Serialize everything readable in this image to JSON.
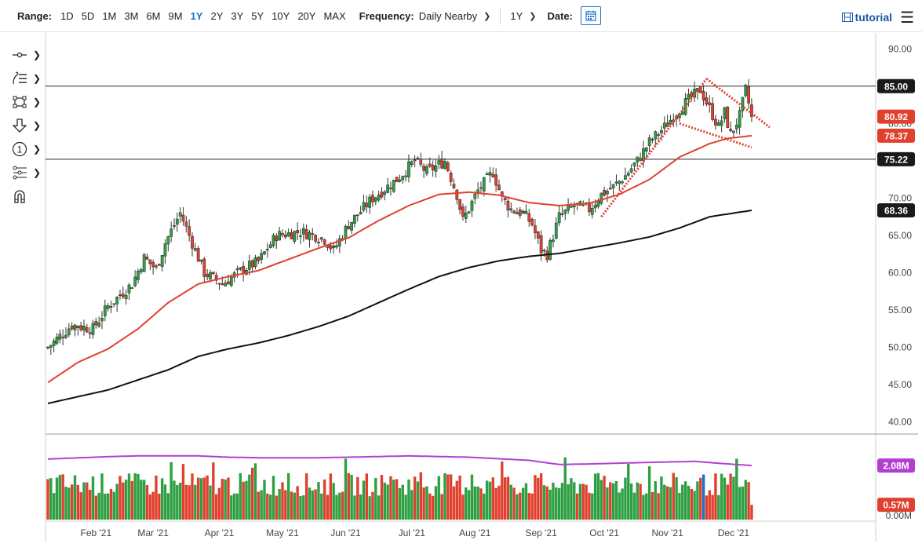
{
  "toolbar": {
    "range_label": "Range:",
    "ranges": [
      "1D",
      "5D",
      "1M",
      "3M",
      "6M",
      "9M",
      "1Y",
      "2Y",
      "3Y",
      "5Y",
      "10Y",
      "20Y",
      "MAX"
    ],
    "active_range": "1Y",
    "frequency_label": "Frequency:",
    "frequency_value": "Daily Nearby",
    "period_value": "1Y",
    "date_label": "Date:",
    "tutorial_label": "tutorial"
  },
  "colors": {
    "up": "#2ea043",
    "down": "#e0412f",
    "ma_short": "#e0412f",
    "ma_long": "#111111",
    "volume_ma": "#b040d0",
    "accent": "#1a73c8"
  },
  "chart_data": [
    {
      "type": "candlestick",
      "x_labels": [
        "Feb '21",
        "Mar '21",
        "Apr '21",
        "May '21",
        "Jun '21",
        "Jul '21",
        "Aug '21",
        "Sep '21",
        "Oct '21",
        "Nov '21",
        "Dec '21"
      ],
      "y_ticks": [
        "90.00",
        "85.00",
        "80.00",
        "75.00",
        "70.00",
        "65.00",
        "60.00",
        "55.00",
        "50.00",
        "45.00",
        "40.00"
      ],
      "ylim": [
        38.5,
        91.5
      ],
      "horizontal_lines": [
        85.0,
        75.22
      ],
      "price_tags": [
        {
          "label": "85.00",
          "value": 85.0,
          "style": "dark"
        },
        {
          "label": "80.92",
          "value": 80.92,
          "style": "red"
        },
        {
          "label": "78.37",
          "value": 78.37,
          "style": "red"
        },
        {
          "label": "75.22",
          "value": 75.22,
          "style": "dark"
        },
        {
          "label": "68.36",
          "value": 68.36,
          "style": "dark"
        }
      ],
      "close_anchors": [
        [
          0,
          50.0
        ],
        [
          8,
          53.0
        ],
        [
          15,
          52.5
        ],
        [
          20,
          55.5
        ],
        [
          28,
          58.5
        ],
        [
          32,
          62.0
        ],
        [
          36,
          60.5
        ],
        [
          39,
          64.0
        ],
        [
          44,
          68.0
        ],
        [
          50,
          62.0
        ],
        [
          52,
          60.0
        ],
        [
          58,
          58.5
        ],
        [
          65,
          60.5
        ],
        [
          70,
          61.5
        ],
        [
          76,
          65.0
        ],
        [
          84,
          65.5
        ],
        [
          89,
          65.0
        ],
        [
          92,
          64.5
        ],
        [
          95,
          63.0
        ],
        [
          100,
          66.5
        ],
        [
          108,
          70.0
        ],
        [
          116,
          72.5
        ],
        [
          122,
          75.0
        ],
        [
          126,
          73.5
        ],
        [
          128,
          74.0
        ],
        [
          132,
          75.0
        ],
        [
          136,
          70.5
        ],
        [
          138,
          67.0
        ],
        [
          143,
          71.0
        ],
        [
          148,
          73.5
        ],
        [
          151,
          70.0
        ],
        [
          154,
          68.5
        ],
        [
          158,
          68.0
        ],
        [
          161,
          66.5
        ],
        [
          164,
          63.0
        ],
        [
          166,
          62.5
        ],
        [
          170,
          67.5
        ],
        [
          175,
          69.0
        ],
        [
          180,
          68.5
        ],
        [
          184,
          70.5
        ],
        [
          188,
          71.5
        ],
        [
          192,
          73.0
        ],
        [
          196,
          75.0
        ],
        [
          200,
          77.5
        ],
        [
          205,
          79.5
        ],
        [
          210,
          82.0
        ],
        [
          214,
          83.5
        ],
        [
          217,
          84.5
        ],
        [
          220,
          82.0
        ],
        [
          223,
          79.5
        ],
        [
          225,
          81.5
        ],
        [
          227,
          78.5
        ],
        [
          230,
          81.0
        ],
        [
          232,
          84.5
        ],
        [
          234,
          80.92
        ]
      ],
      "series": [
        {
          "name": "",
          "type": "line",
          "points": [
            [
              0,
              45.3
            ],
            [
              10,
              48.0
            ],
            [
              20,
              49.8
            ],
            [
              30,
              52.5
            ],
            [
              40,
              56.0
            ],
            [
              50,
              58.5
            ],
            [
              60,
              59.5
            ],
            [
              70,
              60.3
            ],
            [
              80,
              61.8
            ],
            [
              90,
              63.3
            ],
            [
              100,
              64.7
            ],
            [
              110,
              67.0
            ],
            [
              120,
              69.0
            ],
            [
              130,
              70.5
            ],
            [
              140,
              70.8
            ],
            [
              150,
              70.4
            ],
            [
              160,
              69.4
            ],
            [
              170,
              69.0
            ],
            [
              180,
              69.3
            ],
            [
              190,
              70.5
            ],
            [
              200,
              72.5
            ],
            [
              210,
              75.5
            ],
            [
              220,
              77.3
            ],
            [
              226,
              78.0
            ],
            [
              234,
              78.37
            ]
          ]
        },
        {
          "name": "",
          "type": "line",
          "points": [
            [
              0,
              42.5
            ],
            [
              20,
              44.3
            ],
            [
              40,
              47.0
            ],
            [
              50,
              48.8
            ],
            [
              60,
              49.8
            ],
            [
              70,
              50.6
            ],
            [
              80,
              51.6
            ],
            [
              90,
              52.8
            ],
            [
              100,
              54.2
            ],
            [
              110,
              56.0
            ],
            [
              120,
              57.8
            ],
            [
              130,
              59.5
            ],
            [
              140,
              60.7
            ],
            [
              150,
              61.6
            ],
            [
              160,
              62.2
            ],
            [
              170,
              62.6
            ],
            [
              180,
              63.3
            ],
            [
              190,
              64.0
            ],
            [
              200,
              64.8
            ],
            [
              210,
              66.0
            ],
            [
              220,
              67.5
            ],
            [
              228,
              68.0
            ],
            [
              234,
              68.36
            ]
          ]
        }
      ],
      "trendlines": [
        {
          "from": [
            184,
            67.5
          ],
          "to": [
            219,
            86.0
          ]
        },
        {
          "from": [
            219,
            86.0
          ],
          "to": [
            240,
            79.5
          ]
        },
        {
          "from": [
            210,
            80.0
          ],
          "to": [
            234,
            76.8
          ]
        }
      ]
    },
    {
      "type": "bar",
      "name": "volume",
      "y_ticks": [
        "0.00M"
      ],
      "price_tags": [
        {
          "label": "2.08M",
          "value": 2.08,
          "style": "purple"
        },
        {
          "label": "0.57M",
          "value": 0.57,
          "style": "red"
        }
      ],
      "ylim": [
        0,
        3.2
      ],
      "series": [
        {
          "name": "",
          "type": "line",
          "points": [
            [
              0,
              2.33
            ],
            [
              20,
              2.42
            ],
            [
              30,
              2.45
            ],
            [
              50,
              2.45
            ],
            [
              60,
              2.4
            ],
            [
              70,
              2.38
            ],
            [
              90,
              2.38
            ],
            [
              100,
              2.4
            ],
            [
              120,
              2.45
            ],
            [
              140,
              2.4
            ],
            [
              160,
              2.28
            ],
            [
              170,
              2.12
            ],
            [
              180,
              2.14
            ],
            [
              200,
              2.2
            ],
            [
              215,
              2.24
            ],
            [
              225,
              2.15
            ],
            [
              234,
              2.08
            ]
          ]
        }
      ],
      "last_value": 0.57
    }
  ]
}
